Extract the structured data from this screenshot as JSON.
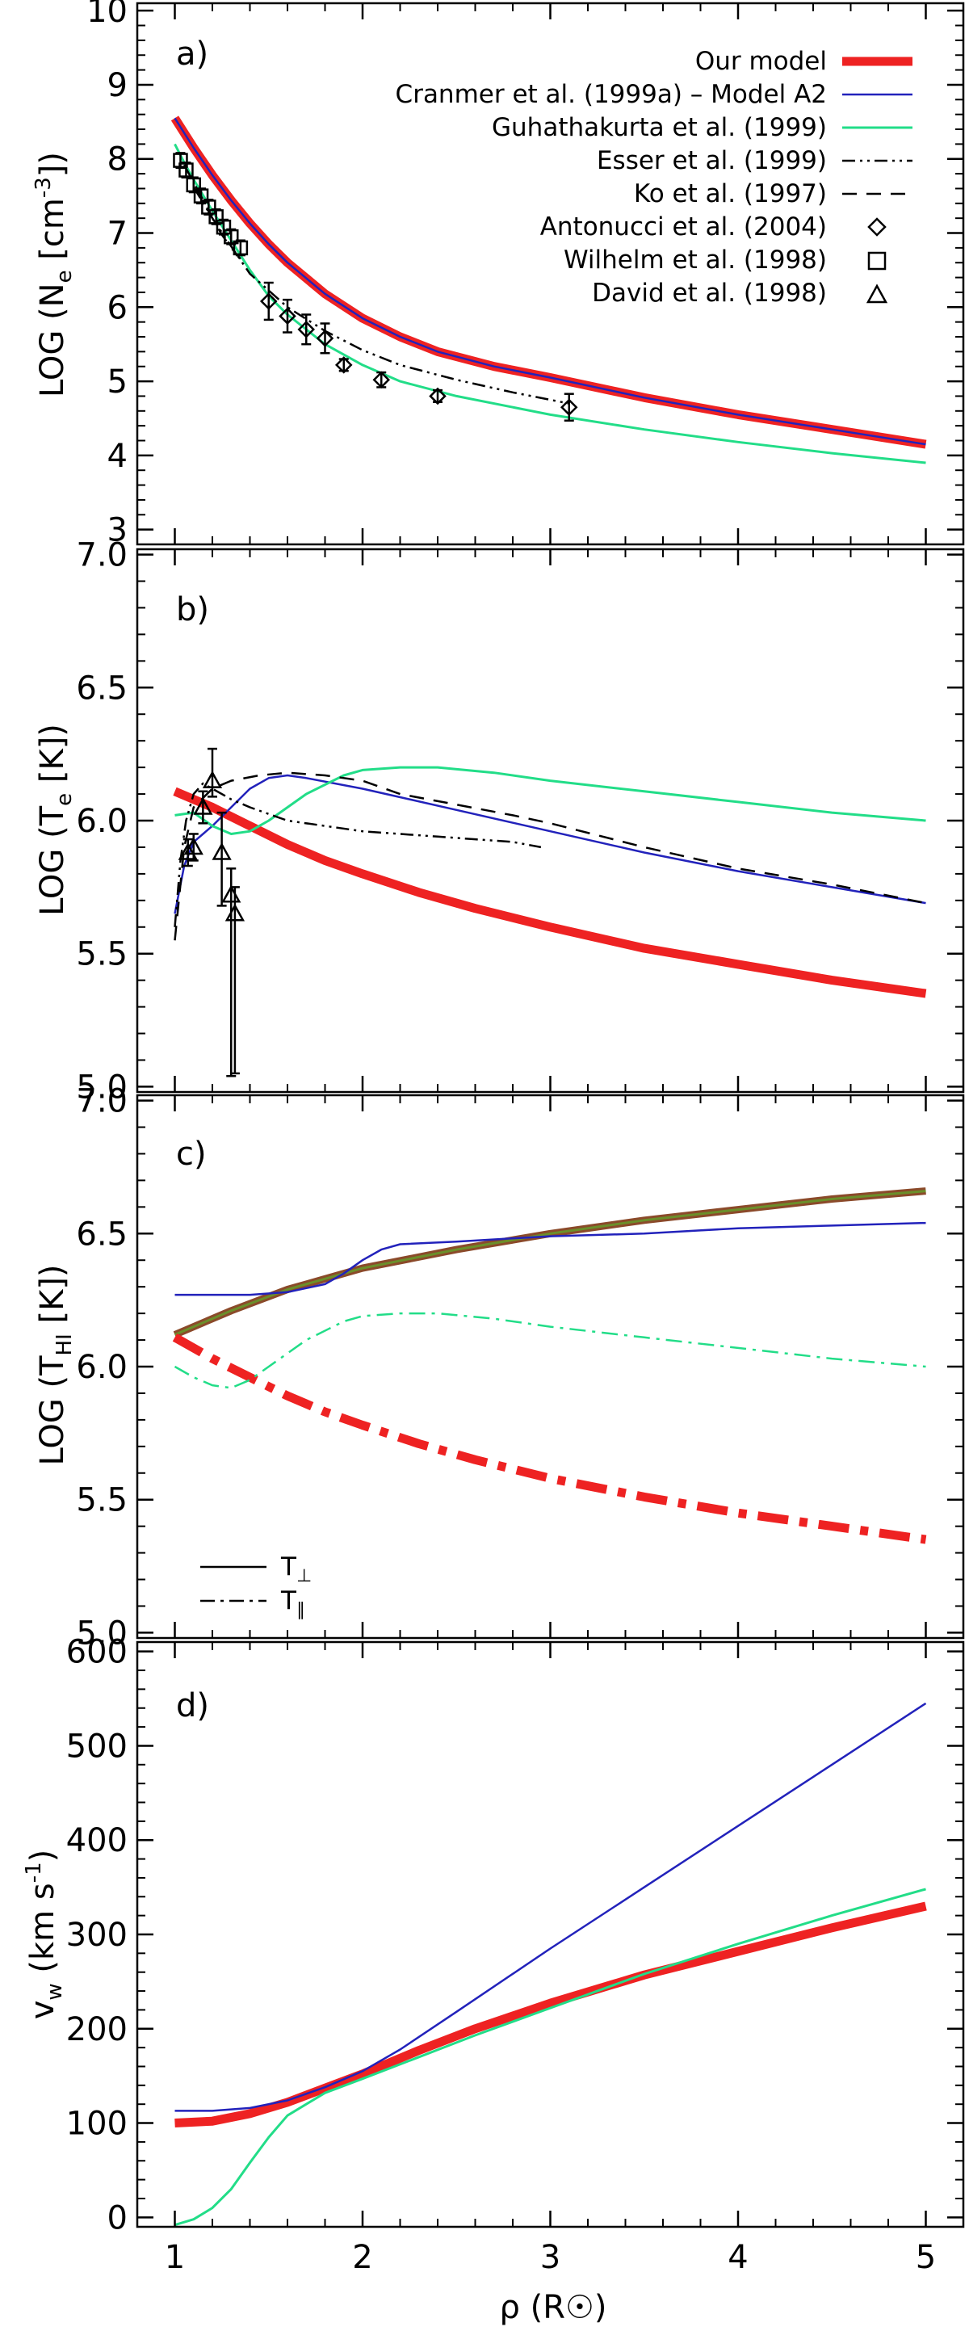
{
  "figure": {
    "xlabel": "ρ (R☉)",
    "x_tick_labels": [
      "1",
      "2",
      "3",
      "4",
      "5"
    ],
    "xlim": [
      0.8,
      5.2
    ],
    "x_ticks": [
      1,
      2,
      3,
      4,
      5
    ]
  },
  "colors": {
    "our_model": "#ee2222",
    "cranmer": "#2222bb",
    "guhathakurta": "#22dd88",
    "esser": "#000000",
    "ko": "#000000",
    "hi_outline": "#8b4a2a",
    "hi_center": "#6b8f2a"
  },
  "chart_data": [
    {
      "id": "a",
      "type": "line",
      "panel_label": "a)",
      "ylabel_main": "LOG (N",
      "ylabel_sub": "e",
      "ylabel_unit": " [cm",
      "ylabel_sup": "-3",
      "ylabel_end": "])",
      "ylim": [
        2.8,
        10.1
      ],
      "y_ticks": [
        3,
        4,
        5,
        6,
        7,
        8,
        9,
        10
      ],
      "y_tick_labels": [
        "3",
        "4",
        "5",
        "6",
        "7",
        "8",
        "9",
        "10"
      ],
      "legend": [
        {
          "label": "Our model",
          "marker": "thick-red"
        },
        {
          "label": "Cranmer et al. (1999a) – Model A2",
          "marker": "blue"
        },
        {
          "label": "Guhathakurta et al. (1999)",
          "marker": "green"
        },
        {
          "label": "Esser et al. (1999)",
          "marker": "dash-dot-dot"
        },
        {
          "label": "Ko et al. (1997)",
          "marker": "dashed"
        },
        {
          "label": "Antonucci et al. (2004)",
          "marker": "diamond"
        },
        {
          "label": "Wilhelm et al. (1998)",
          "marker": "square"
        },
        {
          "label": "David et al. (1998)",
          "marker": "triangle"
        }
      ],
      "series": [
        {
          "name": "Our model",
          "style": "thick-red",
          "x": [
            1.0,
            1.1,
            1.2,
            1.3,
            1.4,
            1.5,
            1.6,
            1.8,
            2.0,
            2.2,
            2.4,
            2.7,
            3.0,
            3.5,
            4.0,
            4.5,
            5.0
          ],
          "y": [
            8.55,
            8.15,
            7.78,
            7.44,
            7.13,
            6.85,
            6.6,
            6.18,
            5.85,
            5.6,
            5.4,
            5.2,
            5.05,
            4.78,
            4.55,
            4.35,
            4.15
          ]
        },
        {
          "name": "Cranmer et al. (1999a) – Model A2",
          "style": "blue",
          "x": [
            1.0,
            1.1,
            1.2,
            1.3,
            1.4,
            1.5,
            1.6,
            1.8,
            2.0,
            2.2,
            2.4,
            2.7,
            3.0,
            3.5,
            4.0,
            4.5,
            5.0
          ],
          "y": [
            8.55,
            8.15,
            7.78,
            7.44,
            7.13,
            6.85,
            6.6,
            6.18,
            5.85,
            5.6,
            5.4,
            5.2,
            5.05,
            4.78,
            4.55,
            4.35,
            4.15
          ]
        },
        {
          "name": "Guhathakurta et al. (1999)",
          "style": "green",
          "x": [
            1.0,
            1.05,
            1.1,
            1.2,
            1.3,
            1.4,
            1.5,
            1.6,
            1.8,
            2.0,
            2.2,
            2.5,
            3.0,
            3.5,
            4.0,
            4.5,
            5.0
          ],
          "y": [
            8.2,
            7.95,
            7.72,
            7.3,
            6.9,
            6.5,
            6.15,
            5.9,
            5.5,
            5.22,
            5.0,
            4.8,
            4.55,
            4.35,
            4.18,
            4.03,
            3.9
          ]
        },
        {
          "name": "Esser et al. (1999)",
          "style": "dash-dot-dot",
          "x": [
            1.1,
            1.2,
            1.3,
            1.4,
            1.6,
            1.8,
            2.0,
            2.2,
            2.5,
            2.8,
            3.0,
            3.1
          ],
          "y": [
            7.62,
            7.2,
            6.82,
            6.45,
            6.0,
            5.68,
            5.42,
            5.22,
            5.02,
            4.85,
            4.75,
            4.7
          ]
        },
        {
          "name": "Ko et al. (1997)",
          "style": "dashed",
          "x": [
            1.05,
            1.1,
            1.15,
            1.2,
            1.25,
            1.3,
            1.35
          ],
          "y": [
            7.92,
            7.68,
            7.45,
            7.2,
            6.98,
            6.8,
            6.65
          ]
        }
      ],
      "points": [
        {
          "name": "Antonucci et al. (2004)",
          "marker": "diamond",
          "x": [
            1.5,
            1.6,
            1.7,
            1.8,
            1.9,
            2.1,
            2.4,
            3.1
          ],
          "y": [
            6.08,
            5.88,
            5.7,
            5.58,
            5.22,
            5.02,
            4.8,
            4.65
          ],
          "err": [
            0.25,
            0.22,
            0.2,
            0.2,
            0.08,
            0.1,
            0.08,
            0.18
          ]
        },
        {
          "name": "Wilhelm et al. (1998)",
          "marker": "square",
          "x": [
            1.03,
            1.06,
            1.1,
            1.14,
            1.18,
            1.22,
            1.26,
            1.3,
            1.35
          ],
          "y": [
            7.98,
            7.85,
            7.65,
            7.5,
            7.35,
            7.22,
            7.08,
            6.95,
            6.8
          ],
          "err": [
            0.1,
            0.1,
            0.1,
            0.1,
            0.1,
            0.1,
            0.1,
            0.1,
            0.1
          ]
        }
      ]
    },
    {
      "id": "b",
      "type": "line",
      "panel_label": "b)",
      "ylabel_main": "LOG (T",
      "ylabel_sub": "e",
      "ylabel_unit": " [K])",
      "ylim": [
        4.98,
        7.02
      ],
      "y_ticks": [
        5.0,
        5.5,
        6.0,
        6.5,
        7.0
      ],
      "y_tick_labels": [
        "5.0",
        "5.5",
        "6.0",
        "6.5",
        "7.0"
      ],
      "series": [
        {
          "name": "Our model",
          "style": "thick-red",
          "x": [
            1.0,
            1.2,
            1.4,
            1.6,
            1.8,
            2.0,
            2.3,
            2.6,
            3.0,
            3.5,
            4.0,
            4.5,
            5.0
          ],
          "y": [
            6.11,
            6.05,
            5.98,
            5.91,
            5.85,
            5.8,
            5.73,
            5.67,
            5.6,
            5.52,
            5.46,
            5.4,
            5.35
          ]
        },
        {
          "name": "Cranmer et al. (1999a) – Model A2",
          "style": "blue",
          "x": [
            1.0,
            1.05,
            1.1,
            1.2,
            1.3,
            1.4,
            1.5,
            1.6,
            1.7,
            2.0,
            2.5,
            3.0,
            3.5,
            4.0,
            4.5,
            5.0
          ],
          "y": [
            5.65,
            5.83,
            5.92,
            5.98,
            6.05,
            6.12,
            6.16,
            6.17,
            6.16,
            6.12,
            6.04,
            5.96,
            5.88,
            5.81,
            5.75,
            5.69
          ]
        },
        {
          "name": "Guhathakurta et al. (1999)",
          "style": "green",
          "x": [
            1.0,
            1.1,
            1.2,
            1.3,
            1.4,
            1.5,
            1.7,
            1.9,
            2.0,
            2.2,
            2.4,
            2.7,
            3.0,
            3.5,
            4.0,
            4.5,
            5.0
          ],
          "y": [
            6.02,
            6.03,
            5.98,
            5.95,
            5.96,
            6.0,
            6.1,
            6.17,
            6.19,
            6.2,
            6.2,
            6.18,
            6.15,
            6.11,
            6.07,
            6.03,
            6.0
          ]
        },
        {
          "name": "Esser et al. (1999)",
          "style": "dash-dot-dot",
          "x": [
            1.0,
            1.03,
            1.06,
            1.1,
            1.15,
            1.2,
            1.3,
            1.4,
            1.6,
            1.8,
            2.0,
            2.2,
            2.4,
            2.6,
            2.8,
            2.95
          ],
          "y": [
            5.6,
            5.85,
            6.0,
            6.1,
            6.14,
            6.12,
            6.08,
            6.05,
            6.0,
            5.98,
            5.96,
            5.95,
            5.94,
            5.93,
            5.92,
            5.9
          ]
        },
        {
          "name": "Ko et al. (1997)",
          "style": "dashed",
          "x": [
            1.0,
            1.05,
            1.1,
            1.2,
            1.3,
            1.45,
            1.6,
            1.8,
            2.0,
            2.2,
            2.5,
            2.8,
            3.0,
            3.5,
            4.0,
            4.5,
            5.0
          ],
          "y": [
            5.55,
            5.9,
            6.05,
            6.12,
            6.15,
            6.17,
            6.18,
            6.17,
            6.15,
            6.1,
            6.06,
            6.02,
            5.99,
            5.9,
            5.82,
            5.76,
            5.69
          ]
        }
      ],
      "points": [
        {
          "name": "David et al. (1998)",
          "marker": "triangle",
          "x": [
            1.07,
            1.1,
            1.15,
            1.2,
            1.25,
            1.3,
            1.32
          ],
          "y": [
            5.88,
            5.9,
            6.05,
            6.15,
            5.88,
            5.72,
            5.65
          ],
          "err_low": [
            0.05,
            0.05,
            0.06,
            0.06,
            0.2,
            0.68,
            0.6
          ],
          "err_high": [
            0.05,
            0.05,
            0.06,
            0.12,
            0.15,
            0.1,
            0.1
          ]
        }
      ]
    },
    {
      "id": "c",
      "type": "line",
      "panel_label": "c)",
      "ylabel_main": "LOG (T",
      "ylabel_sub": "HI",
      "ylabel_unit": " [K])",
      "ylim": [
        4.98,
        7.02
      ],
      "y_ticks": [
        5.0,
        5.5,
        6.0,
        6.5,
        7.0
      ],
      "y_tick_labels": [
        "5.0",
        "5.5",
        "6.0",
        "6.5",
        "7.0"
      ],
      "legend": [
        {
          "label": "T",
          "subscript": "⊥",
          "marker": "solid"
        },
        {
          "label": "T",
          "subscript": "∥",
          "marker": "dash-dot"
        }
      ],
      "series": [
        {
          "name": "Our model T⊥",
          "style": "hi-tube",
          "x": [
            1.0,
            1.3,
            1.6,
            2.0,
            2.5,
            3.0,
            3.5,
            4.0,
            4.5,
            5.0
          ],
          "y": [
            6.12,
            6.21,
            6.29,
            6.37,
            6.44,
            6.5,
            6.55,
            6.59,
            6.63,
            6.66
          ]
        },
        {
          "name": "Our model T∥",
          "style": "thick-red-dashdot",
          "x": [
            1.0,
            1.2,
            1.4,
            1.6,
            1.8,
            2.0,
            2.3,
            2.6,
            3.0,
            3.5,
            4.0,
            4.5,
            5.0
          ],
          "y": [
            6.11,
            6.03,
            5.96,
            5.89,
            5.83,
            5.78,
            5.71,
            5.65,
            5.58,
            5.51,
            5.45,
            5.4,
            5.35
          ]
        },
        {
          "name": "Cranmer T⊥",
          "style": "blue",
          "x": [
            1.0,
            1.4,
            1.6,
            1.8,
            1.9,
            2.0,
            2.1,
            2.2,
            2.5,
            3.0,
            3.5,
            4.0,
            4.5,
            5.0
          ],
          "y": [
            6.27,
            6.27,
            6.28,
            6.31,
            6.35,
            6.4,
            6.44,
            6.46,
            6.47,
            6.49,
            6.5,
            6.52,
            6.53,
            6.54
          ]
        },
        {
          "name": "Guhathakurta T∥",
          "style": "green-dashdot",
          "x": [
            1.0,
            1.1,
            1.2,
            1.3,
            1.4,
            1.5,
            1.7,
            1.9,
            2.0,
            2.2,
            2.4,
            2.7,
            3.0,
            3.5,
            4.0,
            4.5,
            5.0
          ],
          "y": [
            6.0,
            5.96,
            5.93,
            5.92,
            5.95,
            6.0,
            6.1,
            6.17,
            6.19,
            6.2,
            6.2,
            6.18,
            6.15,
            6.11,
            6.07,
            6.03,
            6.0
          ]
        }
      ]
    },
    {
      "id": "d",
      "type": "line",
      "panel_label": "d)",
      "ylabel_main": "v",
      "ylabel_sub": "w",
      "ylabel_unit": " (km s",
      "ylabel_sup": "-1",
      "ylabel_end": ")",
      "ylim": [
        -10,
        610
      ],
      "y_ticks": [
        0,
        100,
        200,
        300,
        400,
        500,
        600
      ],
      "y_tick_labels": [
        "0",
        "100",
        "200",
        "300",
        "400",
        "500",
        "600"
      ],
      "series": [
        {
          "name": "Our model",
          "style": "thick-red",
          "x": [
            1.0,
            1.2,
            1.4,
            1.6,
            1.8,
            2.0,
            2.3,
            2.6,
            3.0,
            3.5,
            4.0,
            4.5,
            5.0
          ],
          "y": [
            100,
            102,
            110,
            122,
            137,
            152,
            177,
            200,
            227,
            257,
            282,
            307,
            330
          ]
        },
        {
          "name": "Cranmer et al. (1999a) – Model A2",
          "style": "blue",
          "x": [
            1.0,
            1.2,
            1.4,
            1.6,
            1.8,
            2.0,
            2.2,
            2.5,
            3.0,
            3.5,
            4.0,
            4.5,
            5.0
          ],
          "y": [
            113,
            113,
            116,
            124,
            138,
            155,
            178,
            218,
            285,
            350,
            415,
            480,
            545
          ]
        },
        {
          "name": "Guhathakurta et al. (1999)",
          "style": "green",
          "x": [
            1.0,
            1.1,
            1.2,
            1.3,
            1.4,
            1.5,
            1.6,
            1.8,
            2.0,
            2.3,
            2.6,
            3.0,
            3.5,
            4.0,
            4.5,
            5.0
          ],
          "y": [
            -8,
            -2,
            10,
            30,
            58,
            85,
            108,
            132,
            147,
            170,
            193,
            222,
            258,
            290,
            320,
            348
          ]
        }
      ]
    }
  ]
}
